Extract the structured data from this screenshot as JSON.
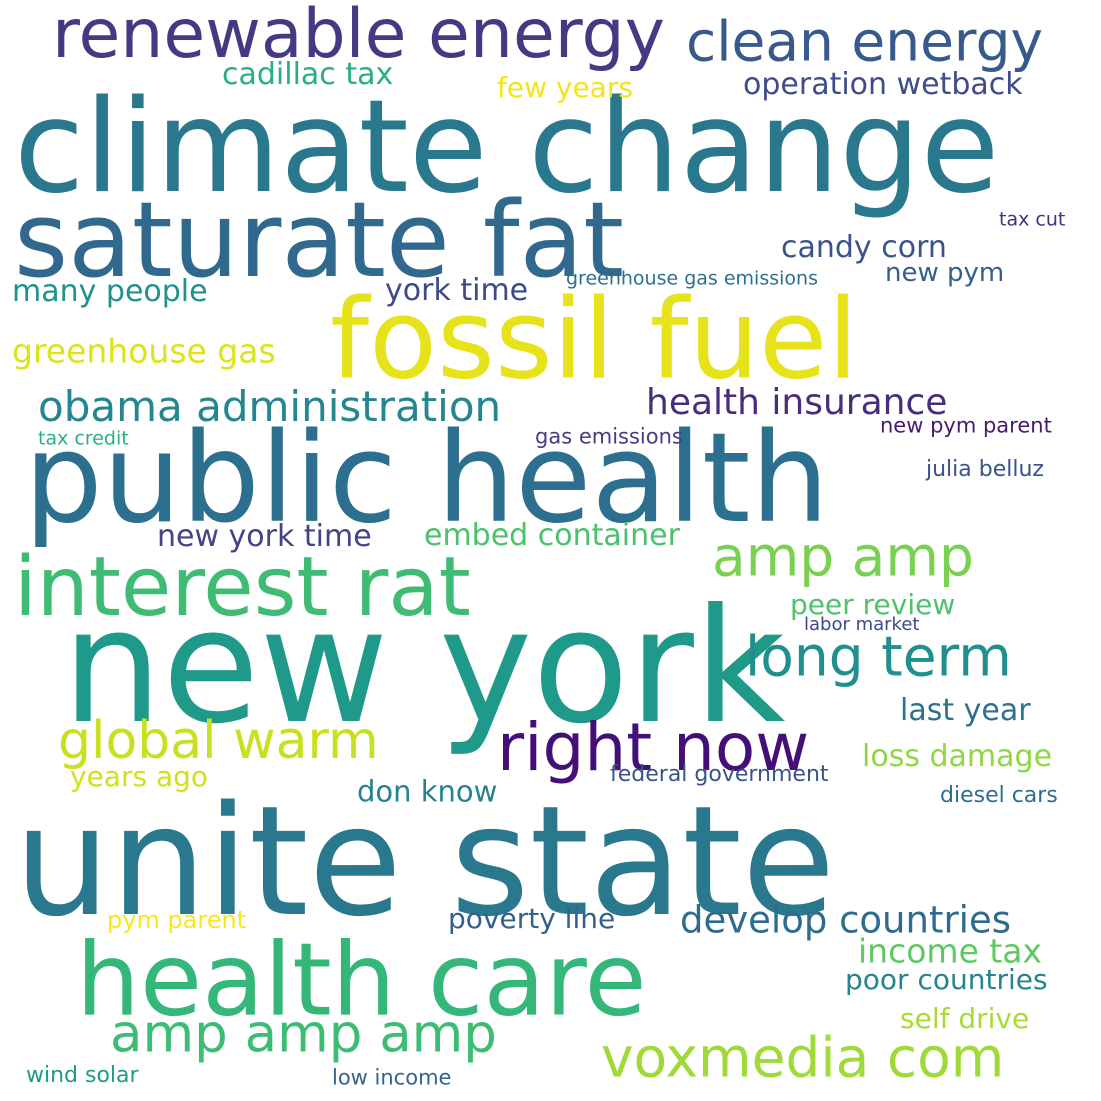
{
  "words": [
    {
      "text": "climate change",
      "color": "#2a788e"
    },
    {
      "text": "unite state",
      "color": "#2a788e"
    },
    {
      "text": "new york",
      "color": "#1f9a8a"
    },
    {
      "text": "public health",
      "color": "#2d6f8e"
    },
    {
      "text": "saturate fat",
      "color": "#31688e"
    },
    {
      "text": "fossil fuel",
      "color": "#e7e31a"
    },
    {
      "text": "health care",
      "color": "#35b779"
    },
    {
      "text": "interest rat",
      "color": "#3fbc73"
    },
    {
      "text": "renewable energy",
      "color": "#443983"
    },
    {
      "text": "clean energy",
      "color": "#38598c"
    },
    {
      "text": "right now",
      "color": "#440f76"
    },
    {
      "text": "voxmedia com",
      "color": "#a0da39"
    },
    {
      "text": "amp amp",
      "color": "#7ad151"
    },
    {
      "text": "long term",
      "color": "#218f8d"
    },
    {
      "text": "amp amp amp",
      "color": "#3dbc74"
    },
    {
      "text": "global warm",
      "color": "#c8e020"
    },
    {
      "text": "obama administration",
      "color": "#24868e"
    },
    {
      "text": "develop countries",
      "color": "#2f6b8e"
    },
    {
      "text": "health insurance",
      "color": "#472d7b"
    },
    {
      "text": "income tax",
      "color": "#5ec962"
    },
    {
      "text": "greenhouse gas",
      "color": "#dde318"
    },
    {
      "text": "candy corn",
      "color": "#3b528b"
    },
    {
      "text": "operation wetback",
      "color": "#3e4c8a"
    },
    {
      "text": "many people",
      "color": "#20928c"
    },
    {
      "text": "cadillac tax",
      "color": "#29af7f"
    },
    {
      "text": "york time",
      "color": "#3e4989"
    },
    {
      "text": "embed container",
      "color": "#4ac16d"
    },
    {
      "text": "new york time",
      "color": "#414487"
    },
    {
      "text": "loss damage",
      "color": "#8fd744"
    },
    {
      "text": "last year",
      "color": "#2c728e"
    },
    {
      "text": "poor countries",
      "color": "#25848e"
    },
    {
      "text": "peer review",
      "color": "#4ec36b"
    },
    {
      "text": "self drive",
      "color": "#a8db34"
    },
    {
      "text": "don know",
      "color": "#26828e"
    },
    {
      "text": "poverty line",
      "color": "#34608d"
    },
    {
      "text": "few years",
      "color": "#f1e51d"
    },
    {
      "text": "years ago",
      "color": "#d0e11c"
    },
    {
      "text": "new pym",
      "color": "#355f8d"
    },
    {
      "text": "pym parent",
      "color": "#f8e621"
    },
    {
      "text": "julia belluz",
      "color": "#3b528b"
    },
    {
      "text": "federal government",
      "color": "#3a538b"
    },
    {
      "text": "diesel cars",
      "color": "#2e6e8e"
    },
    {
      "text": "wind solar",
      "color": "#1e9c89"
    },
    {
      "text": "low income",
      "color": "#32648e"
    },
    {
      "text": "gas emissions",
      "color": "#433e85"
    },
    {
      "text": "new pym parent",
      "color": "#481a6c"
    },
    {
      "text": "greenhouse gas emissions",
      "color": "#2d708e"
    },
    {
      "text": "tax credit",
      "color": "#2ab07f"
    },
    {
      "text": "tax cut",
      "color": "#46307e"
    },
    {
      "text": "labor market",
      "color": "#3f4889"
    }
  ]
}
